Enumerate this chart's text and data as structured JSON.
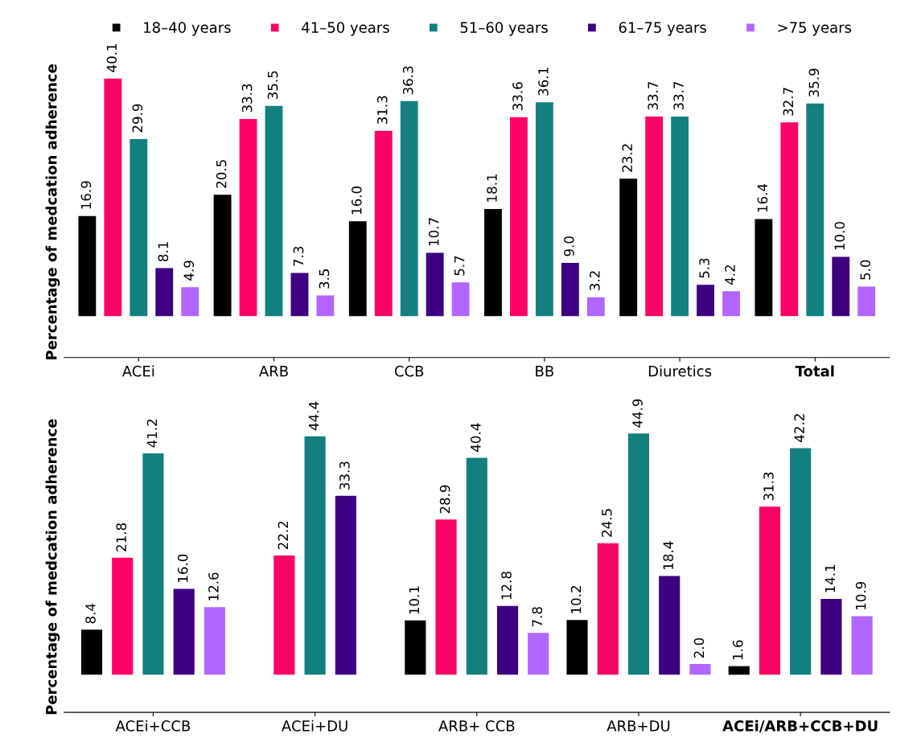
{
  "chart_data": [
    {
      "type": "bar",
      "ylabel": "Percentage of medcation adherence",
      "categories": [
        "ACEi",
        "ARB",
        "CCB",
        "BB",
        "Diuretics",
        "Total"
      ],
      "legend": "top",
      "tick_labels": "x",
      "grid": false,
      "series": [
        {
          "name": "18–40 years",
          "color": "#000000",
          "values": [
            16.9,
            20.5,
            16.0,
            18.1,
            23.2,
            16.4
          ],
          "value_labels": [
            "16.9",
            "20.5",
            "16.0",
            "18.1",
            "23.2",
            "16.4"
          ]
        },
        {
          "name": "41–50 years",
          "color": "#ff0066",
          "values": [
            40.1,
            33.3,
            31.3,
            33.6,
            33.7,
            32.7
          ],
          "value_labels": [
            "40.1",
            "33.3",
            "31.3",
            "33.6",
            "33.7",
            "32.7"
          ]
        },
        {
          "name": "51–60 years",
          "color": "#138080",
          "values": [
            29.9,
            35.5,
            36.3,
            36.1,
            33.7,
            35.9
          ],
          "value_labels": [
            "29.9",
            "35.5",
            "36.3",
            "36.1",
            "33.7",
            "35.9"
          ]
        },
        {
          "name": "61–75 years",
          "color": "#3d0080",
          "values": [
            8.1,
            7.3,
            10.7,
            9.0,
            5.3,
            10.0
          ],
          "value_labels": [
            "8.1",
            "7.3",
            "10.7",
            "9.0",
            "5.3",
            "10.0"
          ]
        },
        {
          "name": ">75 years",
          "color": "#b266ff",
          "values": [
            4.9,
            3.5,
            5.7,
            3.2,
            4.2,
            5.0
          ],
          "value_labels": [
            "4.9",
            "3.5",
            "5.7",
            "3.2",
            "4.2",
            "5.0"
          ]
        }
      ]
    },
    {
      "type": "bar",
      "ylabel": "Percentage of medcation adherence",
      "categories": [
        "ACEi+CCB",
        "ACEi+DU",
        "ARB+ CCB",
        "ARB+DU",
        "ACEi/ARB+CCB+DU"
      ],
      "tick_labels": "x",
      "grid": false,
      "series": [
        {
          "color": "#000000",
          "values": [
            8.4,
            null,
            10.1,
            10.2,
            1.6
          ],
          "value_labels": [
            "8.4",
            null,
            "10.1",
            "10.2",
            "1.6"
          ]
        },
        {
          "color": "#ff0066",
          "values": [
            21.8,
            22.2,
            28.9,
            24.5,
            31.3
          ],
          "value_labels": [
            "21.8",
            "22.2",
            "28.9",
            "24.5",
            "31.3"
          ]
        },
        {
          "color": "#138080",
          "values": [
            41.2,
            44.4,
            40.4,
            44.9,
            42.2
          ],
          "value_labels": [
            "41.2",
            "44.4",
            "40.4",
            "44.9",
            "42.2"
          ]
        },
        {
          "color": "#3d0080",
          "values": [
            16.0,
            33.3,
            12.8,
            18.4,
            14.1
          ],
          "value_labels": [
            "16.0",
            "33.3",
            "12.8",
            "18.4",
            "14.1"
          ]
        },
        {
          "color": "#b266ff",
          "values": [
            12.6,
            null,
            7.8,
            2.0,
            10.9
          ],
          "value_labels": [
            "12.6",
            null,
            "7.8",
            "2.0",
            "10.9"
          ]
        }
      ]
    }
  ]
}
